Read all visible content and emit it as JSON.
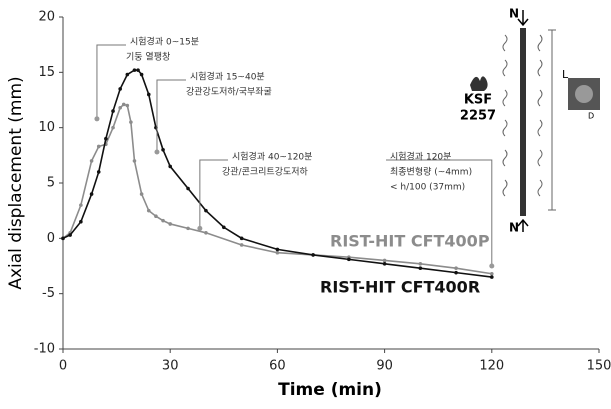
{
  "chart_data": {
    "type": "line",
    "xlabel": "Time (min)",
    "ylabel": "Axial displacement (mm)",
    "xlim": [
      0,
      150
    ],
    "xticks": [
      0,
      30,
      60,
      90,
      120,
      150
    ],
    "ylim": [
      -10,
      20
    ],
    "yticks": [
      -10,
      -5,
      0,
      5,
      10,
      15,
      20
    ],
    "series": [
      {
        "name": "RIST-HIT CFT400P",
        "color": "#8c8c8c",
        "x": [
          0,
          2,
          5,
          8,
          10,
          12,
          14,
          16,
          17,
          18,
          19,
          20,
          22,
          24,
          26,
          28,
          30,
          35,
          40,
          50,
          60,
          70,
          80,
          90,
          100,
          110,
          120
        ],
        "values": [
          0,
          0.5,
          3,
          7,
          8.3,
          8.5,
          10,
          11.8,
          12.1,
          12,
          10.5,
          7,
          4,
          2.5,
          2,
          1.6,
          1.3,
          0.9,
          0.5,
          -0.6,
          -1.3,
          -1.5,
          -1.7,
          -2,
          -2.3,
          -2.7,
          -3.2
        ]
      },
      {
        "name": "RIST-HIT CFT400R",
        "color": "#111111",
        "x": [
          0,
          2,
          5,
          8,
          10,
          12,
          14,
          16,
          18,
          20,
          21,
          22,
          24,
          26,
          28,
          30,
          35,
          40,
          45,
          50,
          60,
          70,
          80,
          90,
          100,
          110,
          120
        ],
        "values": [
          0,
          0.3,
          1.5,
          4,
          6,
          9,
          11.5,
          13.5,
          14.8,
          15.2,
          15.2,
          14.8,
          13,
          10,
          8,
          6.5,
          4.5,
          2.5,
          1,
          0,
          -1,
          -1.5,
          -1.9,
          -2.3,
          -2.7,
          -3.1,
          -3.5
        ]
      }
    ],
    "annotations": [
      {
        "lines": [
          "시험경과 0~15분",
          "기둥 열팽창"
        ],
        "point": [
          9.5,
          10.8
        ]
      },
      {
        "lines": [
          "시험경과 15~40분",
          "강관강도저하/국부좌굴"
        ],
        "point": [
          26.3,
          7.8
        ]
      },
      {
        "lines": [
          "시험경과 40~120분",
          "강관/콘크리트강도저하"
        ],
        "point": [
          38.3,
          0.9
        ]
      },
      {
        "lines": [
          "시험경과 120분",
          "최종변형량 (~4mm)",
          "< h/100 (37mm)"
        ],
        "point": [
          120,
          -2.5
        ]
      }
    ],
    "diagram": {
      "standard": [
        "KSF",
        "2257"
      ],
      "load_top": "N",
      "load_bottom": "N",
      "length": "L",
      "diameter": "D"
    }
  }
}
